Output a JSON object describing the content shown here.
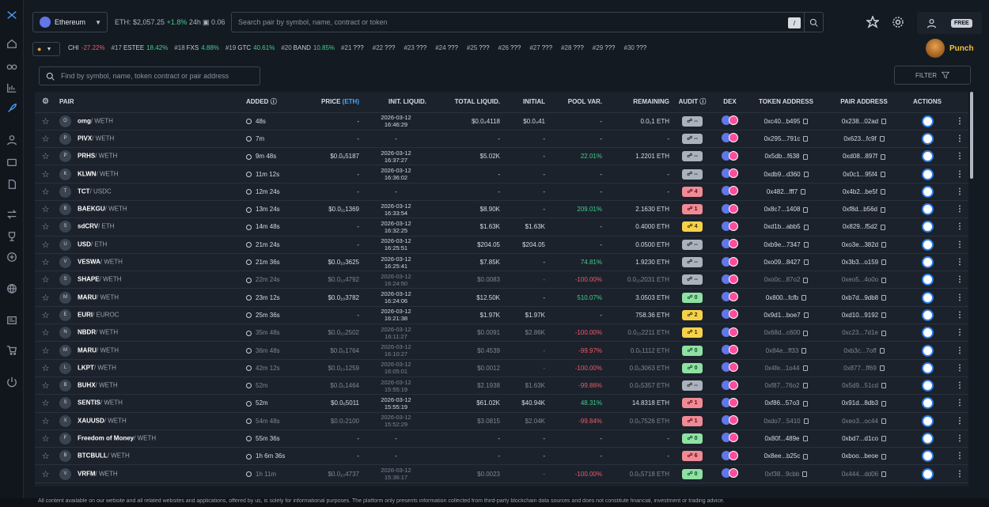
{
  "topbar": {
    "chain": "Ethereum",
    "eth_price": "ETH: $2,057.25",
    "eth_change": "+1.8%",
    "eth_period": "24h",
    "gas": "0.06",
    "search_placeholder": "Search pair by symbol, name, contract or token",
    "shortcut": "/",
    "plan_badge": "FREE"
  },
  "ticker": {
    "items": [
      {
        "rank": "",
        "symbol": "CHI",
        "change": "-27.22%",
        "dir": "neg"
      },
      {
        "rank": "#17",
        "symbol": "ESTEE",
        "change": "18.42%",
        "dir": "pos"
      },
      {
        "rank": "#18",
        "symbol": "FXS",
        "change": "4.88%",
        "dir": "pos"
      },
      {
        "rank": "#19",
        "symbol": "GTC",
        "change": "40.61%",
        "dir": "pos"
      },
      {
        "rank": "#20",
        "symbol": "BAND",
        "change": "10.85%",
        "dir": "pos"
      },
      {
        "rank": "#21",
        "symbol": "???",
        "change": "",
        "dir": ""
      },
      {
        "rank": "#22",
        "symbol": "???",
        "change": "",
        "dir": ""
      },
      {
        "rank": "#23",
        "symbol": "???",
        "change": "",
        "dir": ""
      },
      {
        "rank": "#24",
        "symbol": "???",
        "change": "",
        "dir": ""
      },
      {
        "rank": "#25",
        "symbol": "???",
        "change": "",
        "dir": ""
      },
      {
        "rank": "#26",
        "symbol": "???",
        "change": "",
        "dir": ""
      },
      {
        "rank": "#27",
        "symbol": "???",
        "change": "",
        "dir": ""
      },
      {
        "rank": "#28",
        "symbol": "???",
        "change": "",
        "dir": ""
      },
      {
        "rank": "#29",
        "symbol": "???",
        "change": "",
        "dir": ""
      },
      {
        "rank": "#30",
        "symbol": "???",
        "change": "",
        "dir": ""
      }
    ],
    "promo_label": "Punch"
  },
  "filterbar": {
    "find_placeholder": "Find by symbol, name, token contract or pair address",
    "filter_label": "FILTER"
  },
  "table": {
    "headers": {
      "pair": "PAIR",
      "added": "ADDED",
      "price": "PRICE",
      "price_unit": "(ETH)",
      "init_liq": "INIT. LIQUID.",
      "total_liq": "TOTAL LIQUID.",
      "initial": "INITIAL",
      "pool_var": "POOL VAR.",
      "remaining": "REMAINING",
      "audit": "AUDIT",
      "dex": "DEX",
      "token_addr": "TOKEN ADDRESS",
      "pair_addr": "PAIR ADDRESS",
      "actions": "ACTIONS"
    },
    "rows": [
      {
        "ico": "O",
        "base": "omg",
        "quote": "/ WETH",
        "added": "48s",
        "price": "-",
        "d1": "2026-03-12",
        "d2": "16:46:29",
        "total": "$0.0₄4118",
        "initial": "$0.0₄41",
        "var": "-",
        "vdir": "",
        "rem": "0.0₁1 ETH",
        "audit": "--",
        "acls": "a-neutral",
        "token": "0xc40...b495",
        "pairaddr": "0x238...02ad",
        "dim": false
      },
      {
        "ico": "P",
        "base": "PIVX",
        "quote": "/ WETH",
        "added": "7m",
        "price": "-",
        "d1": "-",
        "d2": "",
        "total": "-",
        "initial": "-",
        "var": "-",
        "vdir": "",
        "rem": "-",
        "audit": "--",
        "acls": "a-neutral",
        "token": "0x295...791c",
        "pairaddr": "0x623...fc9f",
        "dim": false
      },
      {
        "ico": "P",
        "base": "PRHS",
        "quote": "/ WETH",
        "added": "9m 48s",
        "price": "$0.0₈5187",
        "d1": "2026-03-12",
        "d2": "16:37:27",
        "total": "$5.02K",
        "initial": "-",
        "var": "22.01%",
        "vdir": "grn",
        "rem": "1.2201 ETH",
        "audit": "--",
        "acls": "a-neutral",
        "token": "0x5db...f638",
        "pairaddr": "0xd08...897f",
        "dim": false
      },
      {
        "ico": "K",
        "base": "KLWN",
        "quote": "/ WETH",
        "added": "11m 12s",
        "price": "-",
        "d1": "2026-03-12",
        "d2": "16:36:02",
        "total": "-",
        "initial": "-",
        "var": "-",
        "vdir": "",
        "rem": "-",
        "audit": "--",
        "acls": "a-neutral",
        "token": "0xdb9...d360",
        "pairaddr": "0x0c1...95f4",
        "dim": false
      },
      {
        "ico": "T",
        "base": "TCT",
        "quote": "/ USDC",
        "added": "12m 24s",
        "price": "-",
        "d1": "-",
        "d2": "",
        "total": "-",
        "initial": "-",
        "var": "-",
        "vdir": "",
        "rem": "-",
        "audit": "4",
        "acls": "a-red",
        "token": "0x482...fff7",
        "pairaddr": "0x4b2...be5f",
        "dim": false
      },
      {
        "ico": "B",
        "base": "BAEKGU",
        "quote": "/ WETH",
        "added": "13m 24s",
        "price": "$0.0₁₁1369",
        "d1": "2026-03-12",
        "d2": "16:33:54",
        "total": "$8.90K",
        "initial": "-",
        "var": "209.01%",
        "vdir": "grn",
        "rem": "2.1630 ETH",
        "audit": "1",
        "acls": "a-red",
        "token": "0x8c7...1408",
        "pairaddr": "0xf8d...b56d",
        "dim": false
      },
      {
        "ico": "S",
        "base": "sdCRV",
        "quote": "/ ETH",
        "added": "14m 48s",
        "price": "-",
        "d1": "2026-03-12",
        "d2": "16:32:25",
        "total": "$1.63K",
        "initial": "$1.63K",
        "var": "-",
        "vdir": "",
        "rem": "0.4000 ETH",
        "audit": "4",
        "acls": "a-yel",
        "token": "0xd1b...abb5",
        "pairaddr": "0x829...f5d2",
        "dim": false
      },
      {
        "ico": "U",
        "base": "USD",
        "quote": "/ ETH",
        "added": "21m 24s",
        "price": "-",
        "d1": "2026-03-12",
        "d2": "16:25:51",
        "total": "$204.05",
        "initial": "$204.05",
        "var": "-",
        "vdir": "",
        "rem": "0.0500 ETH",
        "audit": "--",
        "acls": "a-neutral",
        "token": "0xb9e...7347",
        "pairaddr": "0xo3e...382d",
        "dim": false
      },
      {
        "ico": "V",
        "base": "VESWA",
        "quote": "/ WETH",
        "added": "21m 36s",
        "price": "$0.0₁₀3625",
        "d1": "2026-03-12",
        "d2": "16:25:41",
        "total": "$7.85K",
        "initial": "-",
        "var": "74.81%",
        "vdir": "grn",
        "rem": "1.9230 ETH",
        "audit": "--",
        "acls": "a-neutral",
        "token": "0xo09...8427",
        "pairaddr": "0x3b3...o159",
        "dim": false
      },
      {
        "ico": "S",
        "base": "SHAPE",
        "quote": "/ WETH",
        "added": "22m 24s",
        "price": "$0.0₁₀4792",
        "d1": "2026-03-12",
        "d2": "16:24:50",
        "total": "$0.0083",
        "initial": "-",
        "var": "-100.00%",
        "vdir": "red",
        "rem": "0.0₁₀2031 ETH",
        "audit": "--",
        "acls": "a-neutral",
        "token": "0xo0c...87o2",
        "pairaddr": "0xeo5...4o0o",
        "dim": true
      },
      {
        "ico": "M",
        "base": "MARU",
        "quote": "/ WETH",
        "added": "23m 12s",
        "price": "$0.0₁₀3782",
        "d1": "2026-03-12",
        "d2": "16:24:06",
        "total": "$12.50K",
        "initial": "-",
        "var": "510.07%",
        "vdir": "grn",
        "rem": "3.0503 ETH",
        "audit": "0",
        "acls": "a-grn",
        "token": "0x800...fcfb",
        "pairaddr": "0xb7d...9db8",
        "dim": false
      },
      {
        "ico": "E",
        "base": "EURI",
        "quote": "/ EUROC",
        "added": "25m 36s",
        "price": "-",
        "d1": "2026-03-12",
        "d2": "16:21:38",
        "total": "$1.97K",
        "initial": "$1.97K",
        "var": "-",
        "vdir": "",
        "rem": "758.36 ETH",
        "audit": "2",
        "acls": "a-yel",
        "token": "0x9d1...boe7",
        "pairaddr": "0xd10...9192",
        "dim": false
      },
      {
        "ico": "N",
        "base": "NBDR",
        "quote": "/ WETH",
        "added": "35m 48s",
        "price": "$0.0₁₀2502",
        "d1": "2026-03-12",
        "d2": "16:11:27",
        "total": "$0.0091",
        "initial": "$2.86K",
        "var": "-100.00%",
        "vdir": "red",
        "rem": "0.0₁₀2211 ETH",
        "audit": "1",
        "acls": "a-yel",
        "token": "0x68d...c600",
        "pairaddr": "0xc23...7d1e",
        "dim": true
      },
      {
        "ico": "M",
        "base": "MARU",
        "quote": "/ WETH",
        "added": "36m 48s",
        "price": "$0.0₈1764",
        "d1": "2026-03-12",
        "d2": "16:10:27",
        "total": "$0.4539",
        "initial": "-",
        "var": "-99.97%",
        "vdir": "red",
        "rem": "0.0₆1112 ETH",
        "audit": "0",
        "acls": "a-grn",
        "token": "0x84e...ff33",
        "pairaddr": "0xb3c...7off",
        "dim": true
      },
      {
        "ico": "L",
        "base": "LKPT",
        "quote": "/ WETH",
        "added": "42m 12s",
        "price": "$0.0₁₀1259",
        "d1": "2026-03-12",
        "d2": "16:05:01",
        "total": "$0.0012",
        "initial": "-",
        "var": "-100.00%",
        "vdir": "red",
        "rem": "0.0₆3063 ETH",
        "audit": "0",
        "acls": "a-grn",
        "token": "0x4fe...1o44",
        "pairaddr": "0x877...ff69",
        "dim": true
      },
      {
        "ico": "B",
        "base": "BUHX",
        "quote": "/ WETH",
        "added": "52m",
        "price": "$0.0₆1464",
        "d1": "2026-03-12",
        "d2": "15:55:19",
        "total": "$2.1938",
        "initial": "$1.63K",
        "var": "-99.86%",
        "vdir": "red",
        "rem": "0.0₅5357 ETH",
        "audit": "--",
        "acls": "a-neutral",
        "token": "0xf87...76o2",
        "pairaddr": "0x5d9...51cd",
        "dim": true
      },
      {
        "ico": "S",
        "base": "SENTIS",
        "quote": "/ WETH",
        "added": "52m",
        "price": "$0.0₆5011",
        "d1": "2026-03-12",
        "d2": "15:55:19",
        "total": "$61.02K",
        "initial": "$40.94K",
        "var": "48.31%",
        "vdir": "grn",
        "rem": "14.8318 ETH",
        "audit": "1",
        "acls": "a-red",
        "token": "0xf86...57o3",
        "pairaddr": "0x91d...8db3",
        "dim": false
      },
      {
        "ico": "X",
        "base": "XAUUSD",
        "quote": "/ WETH",
        "added": "54m 48s",
        "price": "$0.0₇2100",
        "d1": "2026-03-12",
        "d2": "15:52:29",
        "total": "$3.0815",
        "initial": "$2.04K",
        "var": "-99.84%",
        "vdir": "red",
        "rem": "0.0₅7526 ETH",
        "audit": "1",
        "acls": "a-red",
        "token": "0xdo7...5410",
        "pairaddr": "0xeo3...oc44",
        "dim": true
      },
      {
        "ico": "F",
        "base": "Freedom of Money",
        "quote": "/ WETH",
        "added": "55m 36s",
        "price": "-",
        "d1": "-",
        "d2": "",
        "total": "-",
        "initial": "-",
        "var": "-",
        "vdir": "",
        "rem": "-",
        "audit": "0",
        "acls": "a-grn",
        "token": "0x80f...489e",
        "pairaddr": "0xbd7...d1co",
        "dim": false
      },
      {
        "ico": "B",
        "base": "BTCBULL",
        "quote": "/ WETH",
        "added": "1h 6m 36s",
        "price": "-",
        "d1": "-",
        "d2": "",
        "total": "-",
        "initial": "-",
        "var": "-",
        "vdir": "",
        "rem": "-",
        "audit": "6",
        "acls": "a-red",
        "token": "0x8ee...b25c",
        "pairaddr": "0xboo...beoe",
        "dim": false
      },
      {
        "ico": "V",
        "base": "VRFM",
        "quote": "/ WETH",
        "added": "1h 11m",
        "price": "$0.0₁₀4737",
        "d1": "2026-03-12",
        "d2": "15:36:17",
        "total": "$0.0023",
        "initial": "-",
        "var": "-100.00%",
        "vdir": "red",
        "rem": "0.0₅5718 ETH",
        "audit": "0",
        "acls": "a-grn",
        "token": "0xf38...9cbb",
        "pairaddr": "0x444...dd06",
        "dim": true
      }
    ]
  },
  "footer": {
    "text": "All content available on our website and all related websites and applications, offered by us, is solely for informational purposes. The platform only presents information collected from third-party blockchain data sources and does not constitute financial, investment or trading advice."
  },
  "colors": {
    "accent": "#4aa7ff",
    "positive": "#3fcf8e",
    "negative": "#f0596b",
    "gold": "#f3c33a"
  }
}
